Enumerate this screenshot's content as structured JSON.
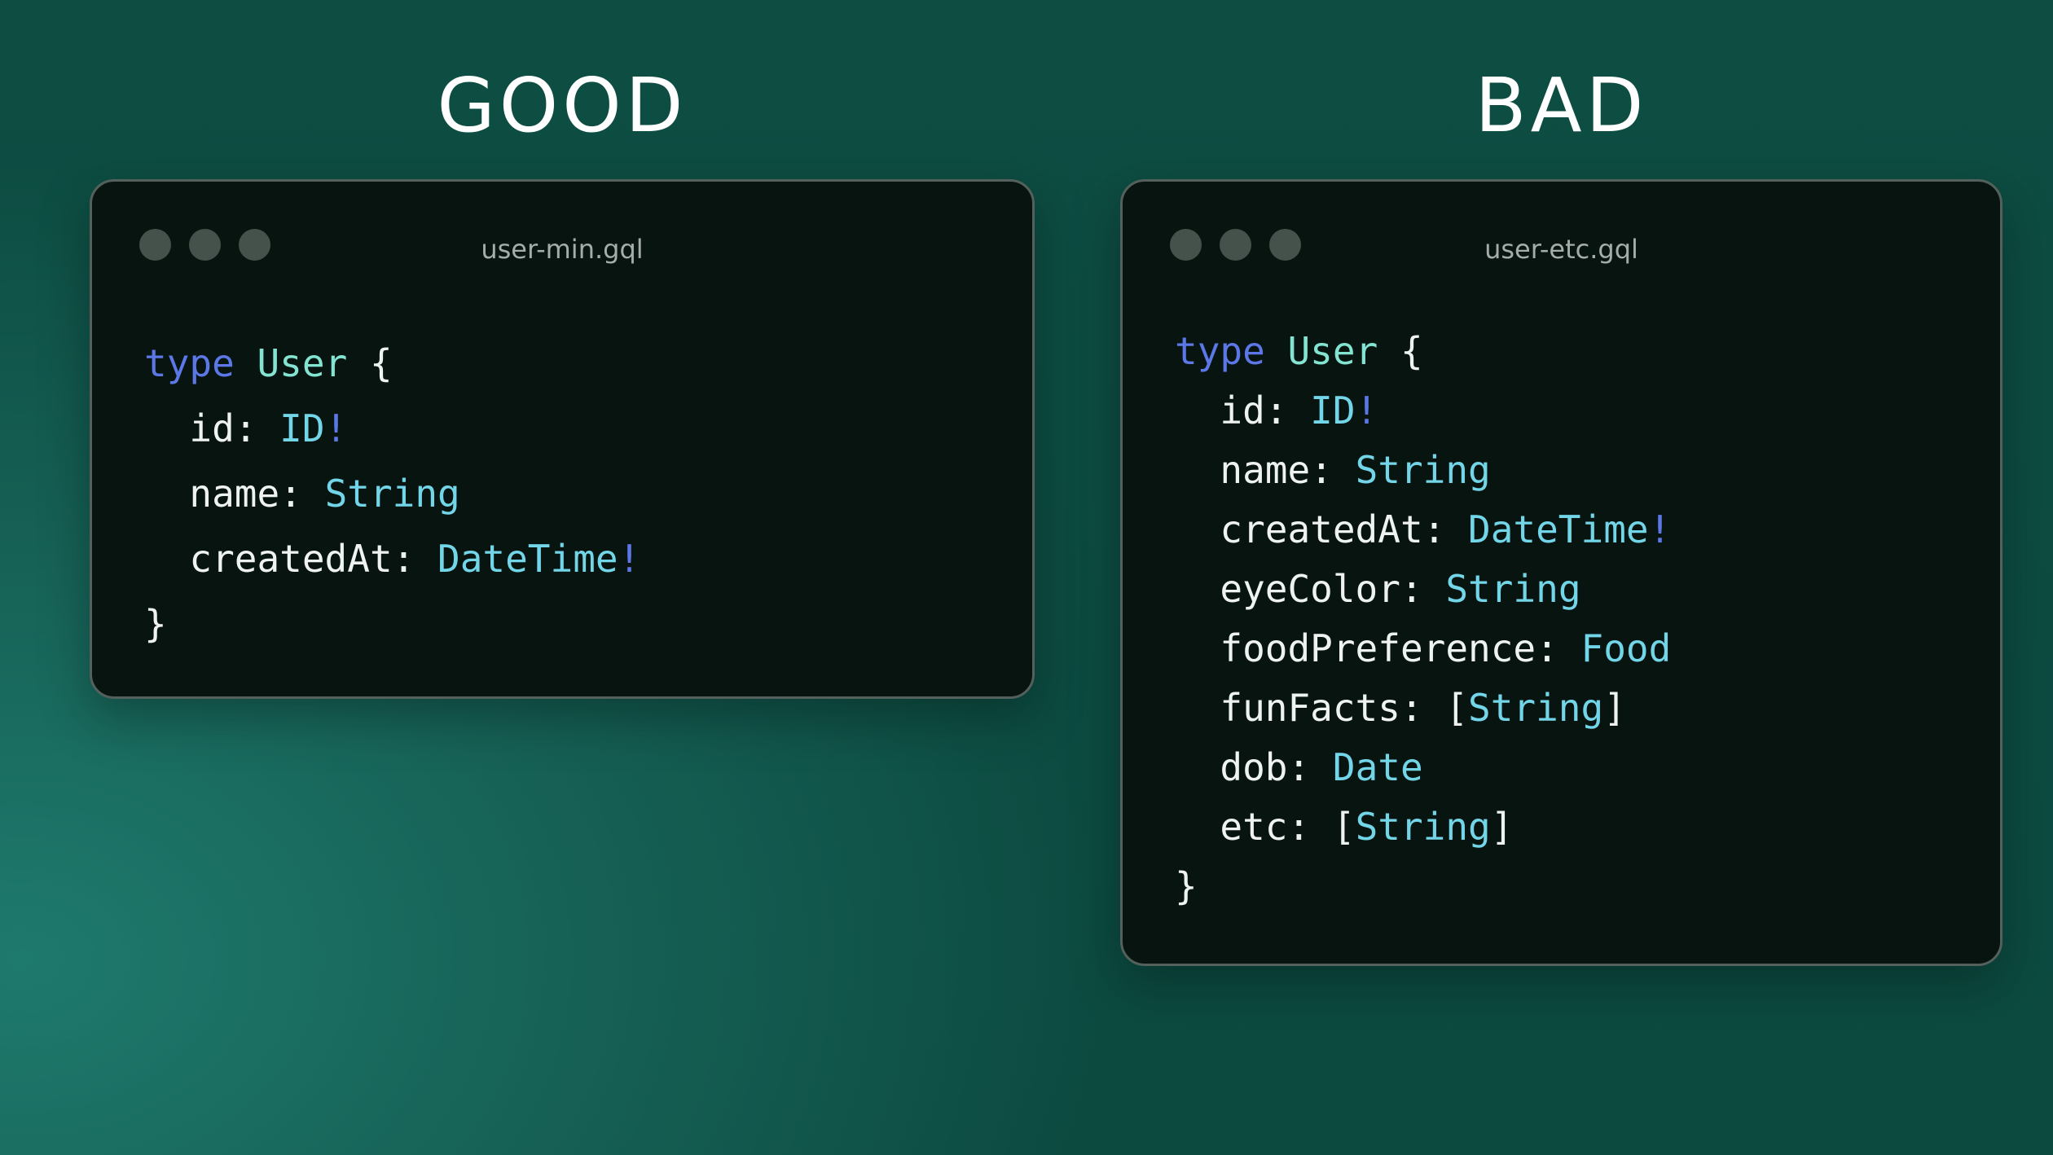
{
  "headings": {
    "good": "GOOD",
    "bad": "BAD"
  },
  "windows": [
    {
      "title": "user-min.gql",
      "code": [
        [
          [
            "kw",
            "type"
          ],
          [
            "plain",
            " "
          ],
          [
            "type",
            "User"
          ],
          [
            "plain",
            " {"
          ]
        ],
        [
          [
            "plain",
            "  id: "
          ],
          [
            "scalar",
            "ID"
          ],
          [
            "kw",
            "!"
          ]
        ],
        [
          [
            "plain",
            "  name: "
          ],
          [
            "scalar",
            "String"
          ]
        ],
        [
          [
            "plain",
            "  createdAt: "
          ],
          [
            "scalar",
            "DateTime"
          ],
          [
            "kw",
            "!"
          ]
        ],
        [
          [
            "plain",
            "}"
          ]
        ]
      ]
    },
    {
      "title": "user-etc.gql",
      "code": [
        [
          [
            "kw",
            "type"
          ],
          [
            "plain",
            " "
          ],
          [
            "type",
            "User"
          ],
          [
            "plain",
            " {"
          ]
        ],
        [
          [
            "plain",
            "  id: "
          ],
          [
            "scalar",
            "ID"
          ],
          [
            "kw",
            "!"
          ]
        ],
        [
          [
            "plain",
            "  name: "
          ],
          [
            "scalar",
            "String"
          ]
        ],
        [
          [
            "plain",
            "  createdAt: "
          ],
          [
            "scalar",
            "DateTime"
          ],
          [
            "kw",
            "!"
          ]
        ],
        [
          [
            "plain",
            "  eyeColor: "
          ],
          [
            "scalar",
            "String"
          ]
        ],
        [
          [
            "plain",
            "  foodPreference: "
          ],
          [
            "scalar",
            "Food"
          ]
        ],
        [
          [
            "plain",
            "  funFacts: ["
          ],
          [
            "scalar",
            "String"
          ],
          [
            "plain",
            "]"
          ]
        ],
        [
          [
            "plain",
            "  dob: "
          ],
          [
            "scalar",
            "Date"
          ]
        ],
        [
          [
            "plain",
            "  etc: ["
          ],
          [
            "scalar",
            "String"
          ],
          [
            "plain",
            "]"
          ]
        ],
        [
          [
            "plain",
            "}"
          ]
        ]
      ]
    }
  ],
  "colors": {
    "background_dark": "#0c4a40",
    "background_light": "#1e7a6d",
    "window_background": "#081410",
    "window_border": "#53605b",
    "traffic_dot": "#45514b",
    "title_text": "#a4adaa",
    "keyword": "#5c77e6",
    "type_name": "#82e4d1",
    "scalar_type": "#73d6e8",
    "plain_code": "#eef3f1",
    "heading_text": "#ffffff"
  }
}
